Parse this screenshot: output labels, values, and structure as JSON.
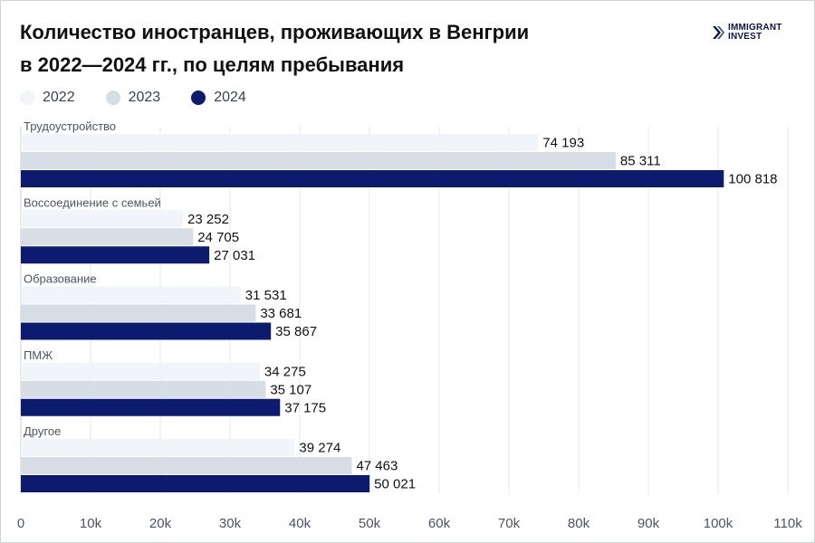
{
  "title_line1": "Количество иностранцев, проживающих в Венгрии",
  "title_line2": "в 2022—2024 гг., по целям пребывания",
  "logo": {
    "line1": "IMMIGRANT",
    "line2": "INVEST",
    "icon": "immigrant-invest-logo-icon"
  },
  "colors": {
    "2022": "#f1f4f8",
    "2023": "#d6dde4",
    "2024": "#0d1b6e",
    "grid": "#e3e7ec"
  },
  "chart_data": {
    "type": "bar",
    "orientation": "horizontal",
    "categories": [
      "Трудоустройство",
      "Воссоединение с семьей",
      "Образование",
      "ПМЖ",
      "Другое"
    ],
    "series": [
      {
        "name": "2022",
        "values": [
          74193,
          23252,
          31531,
          34275,
          39274
        ],
        "labels": [
          "74 193",
          "23 252",
          "31 531",
          "34 275",
          "39 274"
        ]
      },
      {
        "name": "2023",
        "values": [
          85311,
          24705,
          33681,
          35107,
          47463
        ],
        "labels": [
          "85 311",
          "24 705",
          "33 681",
          "35 107",
          "47 463"
        ]
      },
      {
        "name": "2024",
        "values": [
          100818,
          27031,
          35867,
          37175,
          50021
        ],
        "labels": [
          "100 818",
          "27 031",
          "35 867",
          "37 175",
          "50 021"
        ]
      }
    ],
    "xlim": [
      0,
      110000
    ],
    "xticks": [
      0,
      10000,
      20000,
      30000,
      40000,
      50000,
      60000,
      70000,
      80000,
      90000,
      100000,
      110000
    ],
    "xtick_labels": [
      "0",
      "10k",
      "20k",
      "30k",
      "40k",
      "50k",
      "60k",
      "70k",
      "80k",
      "90k",
      "100k",
      "110k"
    ],
    "grid": "vertical",
    "legend": "top-left"
  }
}
